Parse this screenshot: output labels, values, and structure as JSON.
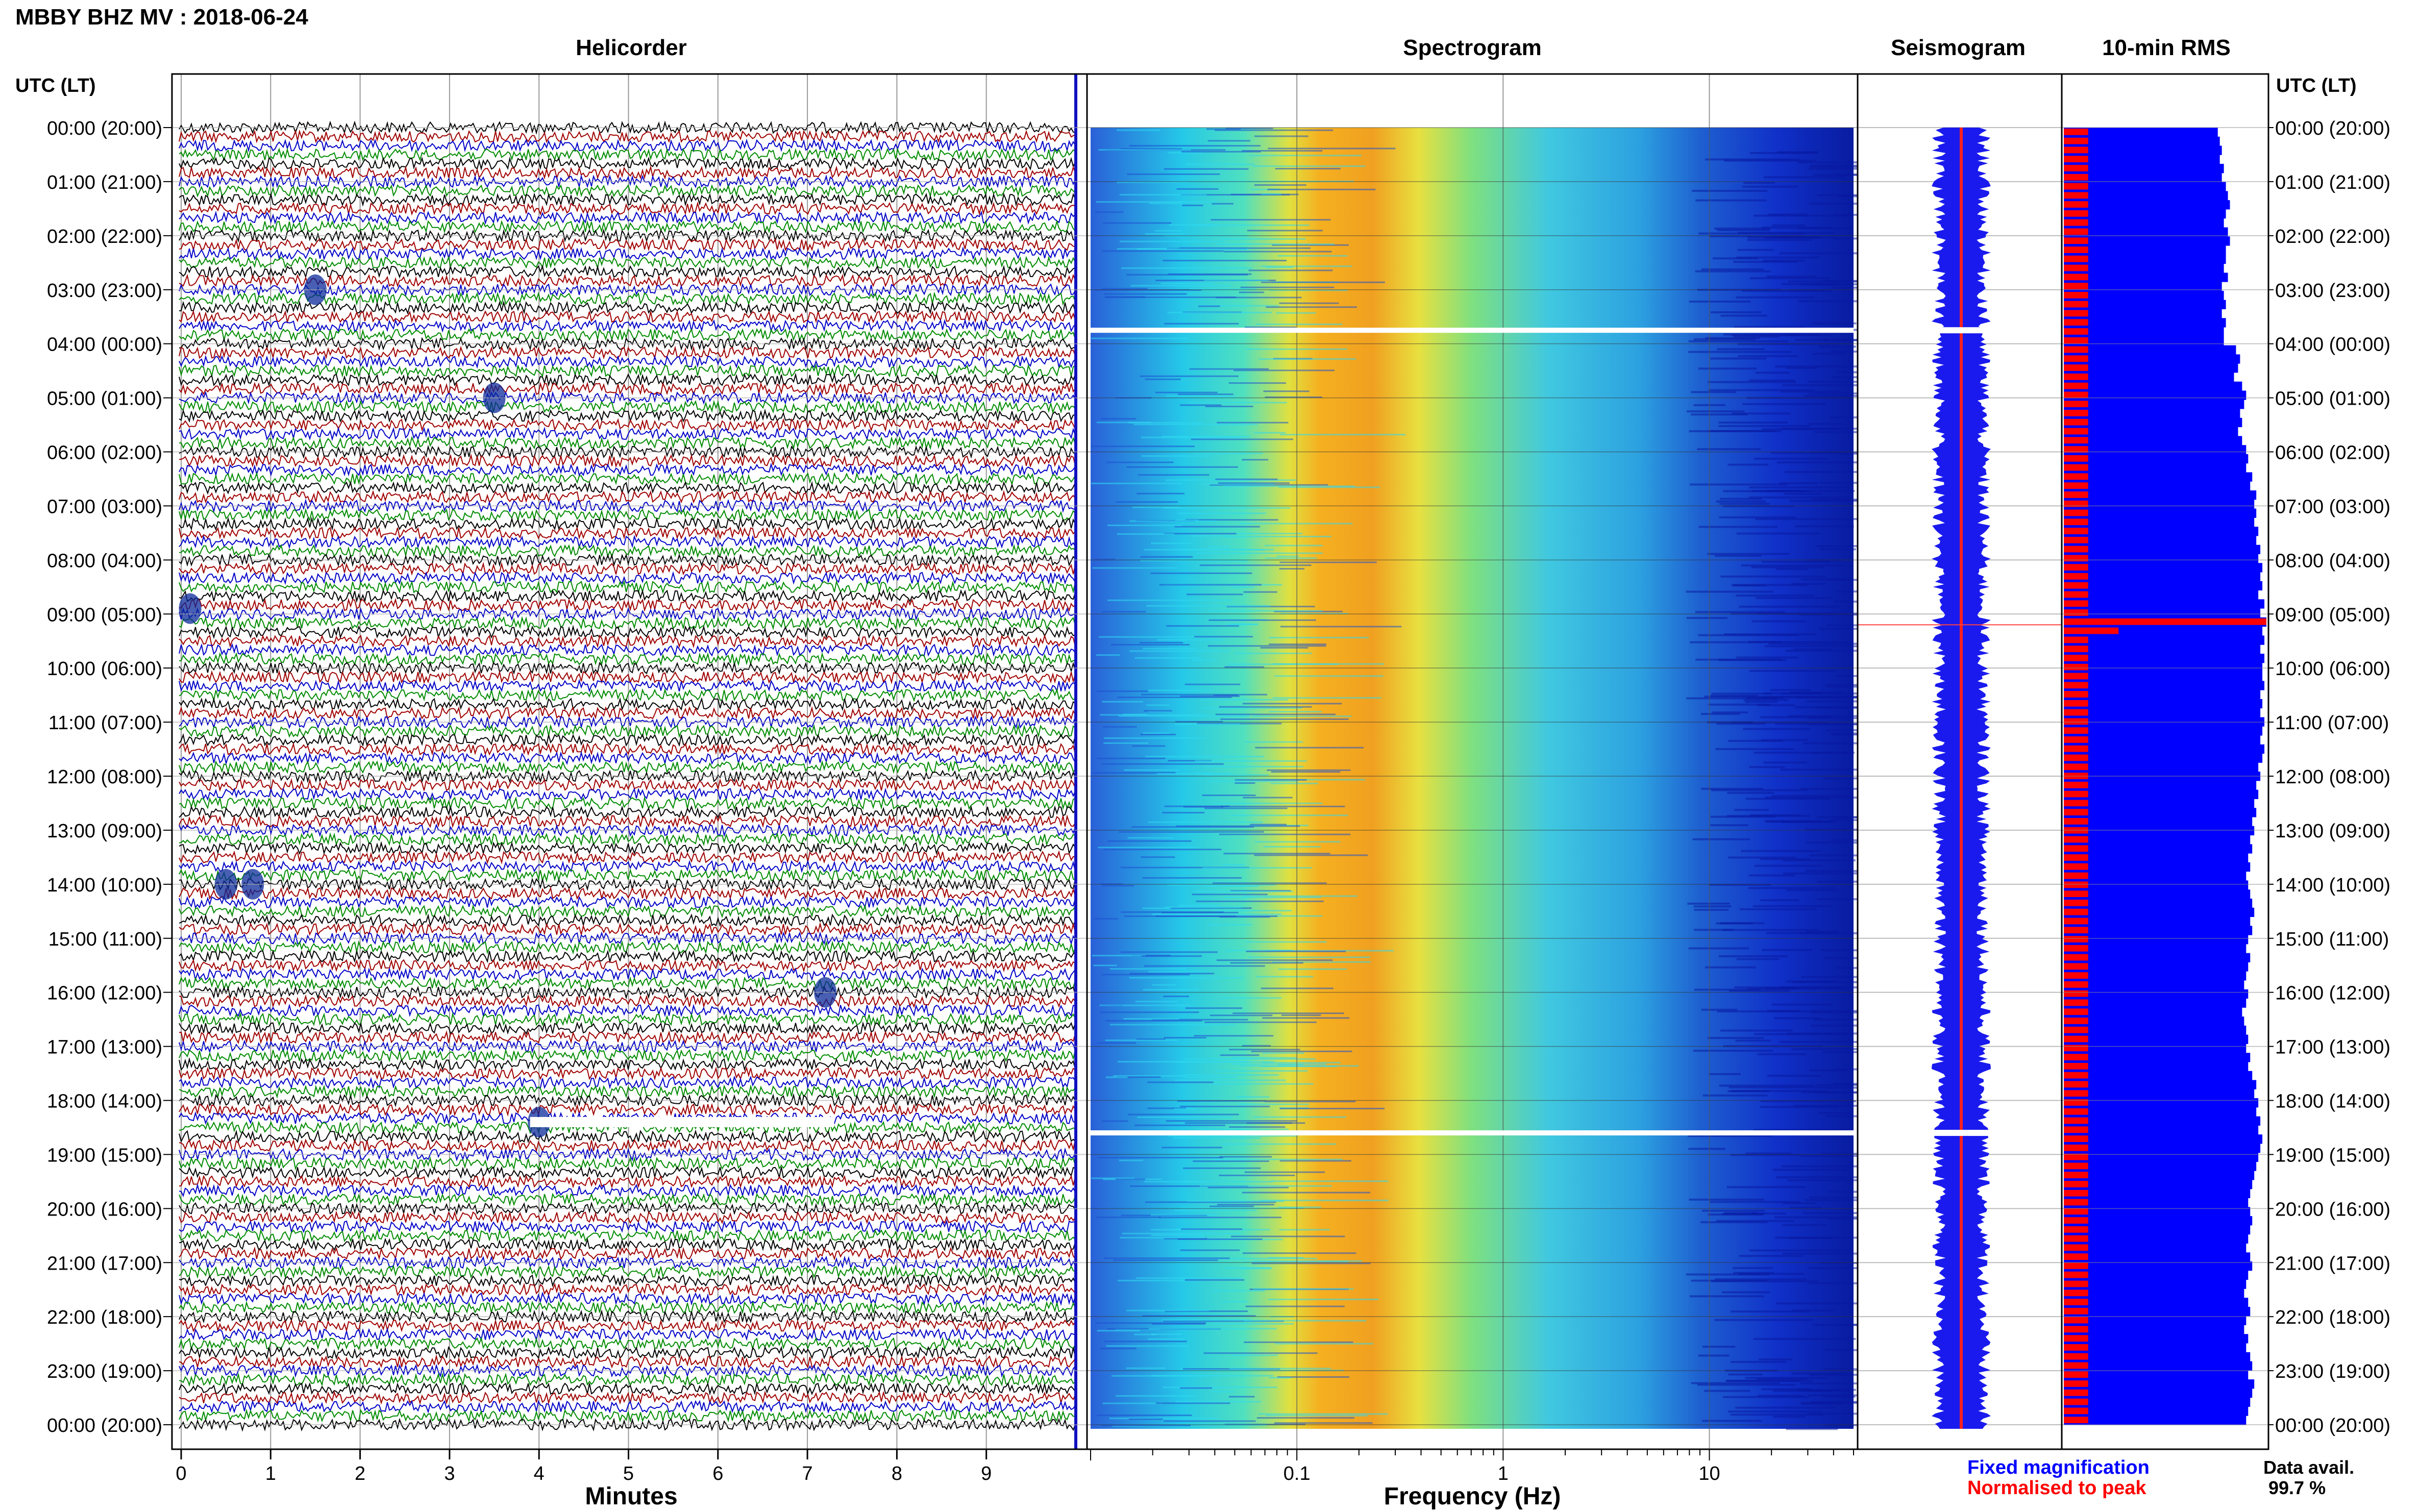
{
  "header": {
    "title": "MBBY BHZ MV : 2018-06-24"
  },
  "panels": {
    "helicorder": "Helicorder",
    "spectrogram": "Spectrogram",
    "seismogram": "Seismogram",
    "rms": "10-min RMS"
  },
  "time_axis": {
    "label_left": "UTC (LT)",
    "label_right": "UTC (LT)",
    "ticks": [
      "00:00 (20:00)",
      "01:00 (21:00)",
      "02:00 (22:00)",
      "03:00 (23:00)",
      "04:00 (00:00)",
      "05:00 (01:00)",
      "06:00 (02:00)",
      "07:00 (03:00)",
      "08:00 (04:00)",
      "09:00 (05:00)",
      "10:00 (06:00)",
      "11:00 (07:00)",
      "12:00 (08:00)",
      "13:00 (09:00)",
      "14:00 (10:00)",
      "15:00 (11:00)",
      "16:00 (12:00)",
      "17:00 (13:00)",
      "18:00 (14:00)",
      "19:00 (15:00)",
      "20:00 (16:00)",
      "21:00 (17:00)",
      "22:00 (18:00)",
      "23:00 (19:00)",
      "00:00 (20:00)"
    ]
  },
  "footer": {
    "minutes_label": "Minutes",
    "frequency_label": "Frequency (Hz)",
    "legend_fixed": "Fixed magnification",
    "legend_normalised": "Normalised to peak",
    "data_avail_label": "Data avail.",
    "data_avail_value": "99.7 %"
  },
  "colors": {
    "trace_cycle": [
      "#000000",
      "#a00000",
      "#0000c8",
      "#008c00"
    ],
    "fixed": "#0000ff",
    "normalised": "#ff0000",
    "grid": "#aaaaaa"
  },
  "chart_data": [
    {
      "type": "line",
      "title": "Helicorder",
      "xlabel": "Minutes",
      "xlim": [
        0,
        10
      ],
      "xticks": [
        0,
        1,
        2,
        3,
        4,
        5,
        6,
        7,
        8,
        9
      ],
      "rows_per_hour": 6,
      "hours": 24,
      "events": [
        {
          "hour": 3.0,
          "minute": 1.5
        },
        {
          "hour": 5.0,
          "minute": 3.5
        },
        {
          "hour": 8.9,
          "minute": 0.1
        },
        {
          "hour": 14.0,
          "minute": 0.5
        },
        {
          "hour": 14.0,
          "minute": 0.8
        },
        {
          "hour": 16.0,
          "minute": 7.2
        },
        {
          "hour": 18.4,
          "minute": 4.0
        }
      ]
    },
    {
      "type": "heatmap",
      "title": "Spectrogram",
      "xlabel": "Frequency (Hz)",
      "xscale": "log",
      "xlim": [
        0.01,
        50
      ],
      "xticks": [
        0.1,
        1,
        10
      ],
      "xtick_labels": [
        "0.1",
        "1",
        "10"
      ],
      "peak_band_hz": [
        0.2,
        0.5
      ],
      "gaps_utc_hours": [
        3.75,
        18.6
      ]
    },
    {
      "type": "line",
      "title": "Seismogram",
      "xlim": [
        -1,
        1
      ],
      "gaps_utc_hours": [
        3.75,
        18.6
      ]
    },
    {
      "type": "bar",
      "title": "10-min RMS",
      "xlim": [
        0,
        1
      ],
      "series": [
        {
          "name": "Fixed magnification",
          "values": [
            0.76,
            0.77,
            0.78,
            0.77,
            0.79,
            0.78,
            0.8,
            0.81,
            0.82,
            0.8,
            0.79,
            0.81,
            0.82,
            0.8,
            0.8,
            0.79,
            0.81,
            0.78,
            0.79,
            0.8,
            0.78,
            0.8,
            0.79,
            0.79,
            0.85,
            0.87,
            0.86,
            0.84,
            0.88,
            0.9,
            0.89,
            0.87,
            0.88,
            0.86,
            0.88,
            0.9,
            0.91,
            0.9,
            0.93,
            0.92,
            0.95,
            0.94,
            0.95,
            0.94,
            0.96,
            0.95,
            0.97,
            0.96,
            0.98,
            0.97,
            0.98,
            0.96,
            0.99,
            0.97,
            1.0,
            0.98,
            0.99,
            0.97,
            0.99,
            0.98,
            0.98,
            0.99,
            0.97,
            0.98,
            0.97,
            0.99,
            0.98,
            0.97,
            0.99,
            0.98,
            0.96,
            0.97,
            0.95,
            0.96,
            0.94,
            0.95,
            0.93,
            0.94,
            0.92,
            0.93,
            0.91,
            0.92,
            0.9,
            0.91,
            0.92,
            0.93,
            0.94,
            0.92,
            0.93,
            0.91,
            0.9,
            0.92,
            0.91,
            0.9,
            0.89,
            0.91,
            0.9,
            0.88,
            0.89,
            0.9,
            0.91,
            0.9,
            0.92,
            0.91,
            0.93,
            0.95,
            0.94,
            0.96,
            0.95,
            0.97,
            0.96,
            0.98,
            0.97,
            0.96,
            0.95,
            0.94,
            0.93,
            0.92,
            0.91,
            0.92,
            0.93,
            0.92,
            0.91,
            0.9,
            0.92,
            0.93,
            0.91,
            0.9,
            0.89,
            0.91,
            0.92,
            0.9,
            0.89,
            0.91,
            0.9,
            0.92,
            0.93,
            0.91,
            0.94,
            0.93,
            0.92,
            0.91,
            0.9
          ]
        },
        {
          "name": "Normalised to peak",
          "values": [
            0.12,
            0.12,
            0.12,
            0.12,
            0.12,
            0.12,
            0.12,
            0.12,
            0.12,
            0.12,
            0.12,
            0.12,
            0.12,
            0.12,
            0.12,
            0.12,
            0.12,
            0.12,
            0.12,
            0.12,
            0.12,
            0.12,
            0.12,
            0.12,
            0.12,
            0.12,
            0.12,
            0.12,
            0.12,
            0.12,
            0.12,
            0.12,
            0.12,
            0.12,
            0.12,
            0.12,
            0.12,
            0.12,
            0.12,
            0.12,
            0.12,
            0.12,
            0.12,
            0.12,
            0.12,
            0.12,
            0.12,
            0.12,
            0.12,
            0.12,
            0.12,
            0.12,
            0.12,
            0.12,
            1.0,
            0.27,
            0.12,
            0.12,
            0.12,
            0.12,
            0.12,
            0.12,
            0.12,
            0.12,
            0.12,
            0.12,
            0.12,
            0.12,
            0.12,
            0.12,
            0.12,
            0.12,
            0.12,
            0.12,
            0.12,
            0.12,
            0.12,
            0.12,
            0.12,
            0.12,
            0.12,
            0.12,
            0.12,
            0.12,
            0.12,
            0.12,
            0.12,
            0.12,
            0.12,
            0.12,
            0.12,
            0.12,
            0.12,
            0.12,
            0.12,
            0.12,
            0.12,
            0.12,
            0.12,
            0.12,
            0.12,
            0.12,
            0.12,
            0.12,
            0.12,
            0.12,
            0.12,
            0.12,
            0.12,
            0.12,
            0.12,
            0.12,
            0.12,
            0.12,
            0.12,
            0.12,
            0.12,
            0.12,
            0.12,
            0.12,
            0.12,
            0.12,
            0.12,
            0.12,
            0.12,
            0.12,
            0.12,
            0.12,
            0.12,
            0.12,
            0.12,
            0.12,
            0.12,
            0.12,
            0.12,
            0.12,
            0.12,
            0.12,
            0.12,
            0.12,
            0.12,
            0.12,
            0.12
          ]
        }
      ]
    }
  ]
}
